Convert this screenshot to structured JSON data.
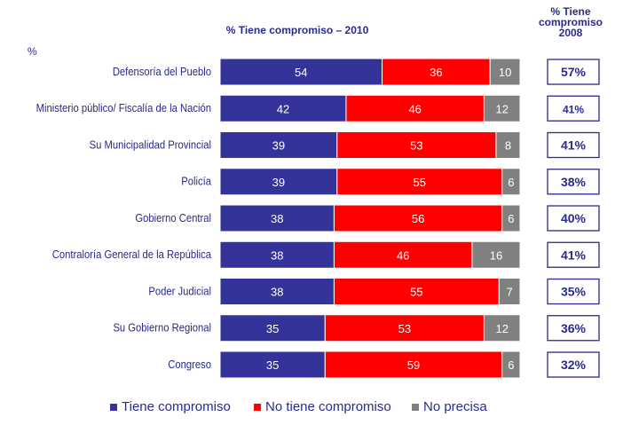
{
  "chart_data": {
    "type": "bar",
    "orientation": "horizontal",
    "stacked": true,
    "title": "% Tiene compromiso – 2010",
    "unit_label": "%",
    "categories": [
      "Defensoría del Pueblo",
      "Ministerio público/ Fiscalía de la Nación",
      "Su Municipalidad Provincial",
      "Policía",
      "Gobierno Central",
      "Contraloría General de la República",
      "Poder Judicial",
      "Su Gobierno Regional",
      "Congreso"
    ],
    "series": [
      {
        "name": "Tiene compromiso",
        "color": "#333399",
        "values": [
          54,
          42,
          39,
          39,
          38,
          38,
          38,
          35,
          35
        ]
      },
      {
        "name": "No tiene compromiso",
        "color": "#ff0000",
        "values": [
          36,
          46,
          53,
          55,
          56,
          46,
          55,
          53,
          59
        ]
      },
      {
        "name": "No precisa",
        "color": "#808080",
        "values": [
          10,
          12,
          8,
          6,
          6,
          16,
          7,
          12,
          6
        ]
      }
    ],
    "comparison": {
      "title": "% Tiene compromiso 2008",
      "values": [
        "57%",
        "41%",
        "41%",
        "38%",
        "40%",
        "41%",
        "35%",
        "36%",
        "32%"
      ]
    },
    "legend_position": "bottom",
    "grid": false
  },
  "colors": {
    "blue": "#333399",
    "red": "#ff0000",
    "gray": "#808080",
    "text": "#2a2a8c"
  }
}
